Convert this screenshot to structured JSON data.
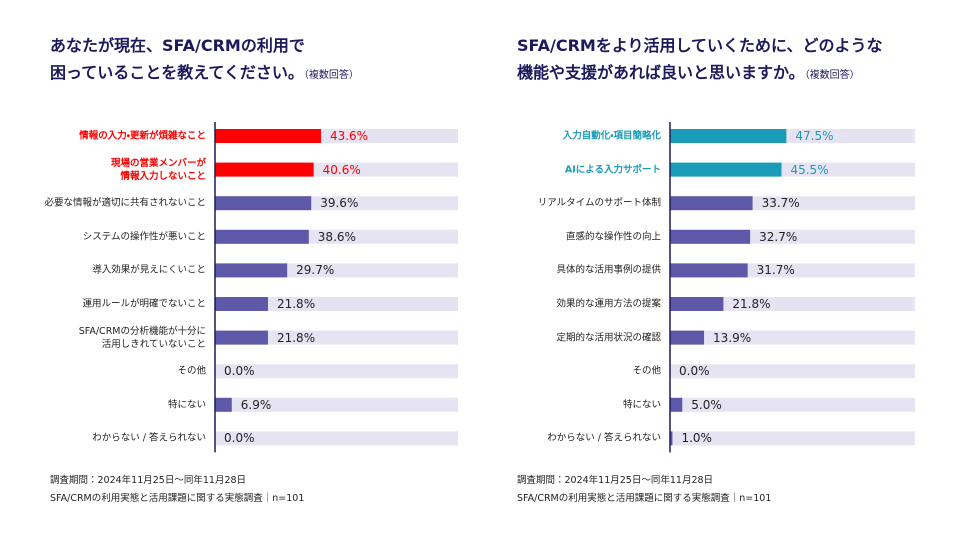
{
  "chart_data": [
    {
      "type": "bar",
      "title": [
        "あなたが現在、SFA/CRMの利用で",
        "困っていることを教えてください。"
      ],
      "title_note": "（複数回答）",
      "categories": [
        "情報の入力・更新が煩雑なこと",
        "現場の営業メンバーが\n情報入力しないこと",
        "必要な情報が適切に共有されないこと",
        "システムの操作性が悪いこと",
        "導入効果が見えにくいこと",
        "運用ルールが明確でないこと",
        "SFA/CRMの分析機能が十分に\n活用しきれていないこと",
        "その他",
        "特にない",
        "わからない / 答えられない"
      ],
      "values": [
        43.6,
        40.6,
        39.6,
        38.6,
        29.7,
        21.8,
        21.8,
        0.0,
        6.9,
        0.0
      ],
      "value_labels": [
        "43.6%",
        "40.6%",
        "39.6%",
        "38.6%",
        "29.7%",
        "21.8%",
        "21.8%",
        "0.0%",
        "6.9%",
        "0.0%"
      ],
      "color": "#5d58a8",
      "highlight_color": "#ff0000",
      "highlighted": [
        0,
        1
      ],
      "track_color": "#e6e4f2",
      "xlim": [
        0,
        100
      ],
      "footnotes": [
        "調査期間：2024年11月25日～同年11月28日",
        "SFA/CRMの利用実態と活用課題に関する実態調査｜n=101"
      ]
    },
    {
      "type": "bar",
      "title": [
        "SFA/CRMをより活用していくために、どのような",
        "機能や支援があれば良いと思いますか。"
      ],
      "title_note": "（複数回答）",
      "categories": [
        "入力自動化・項目簡略化",
        "AIによる入力サポート",
        "リアルタイムのサポート体制",
        "直感的な操作性の向上",
        "具体的な活用事例の提供",
        "効果的な運用方法の提案",
        "定期的な活用状況の確認",
        "その他",
        "特にない",
        "わからない / 答えられない"
      ],
      "values": [
        47.5,
        45.5,
        33.7,
        32.7,
        31.7,
        21.8,
        13.9,
        0.0,
        5.0,
        1.0
      ],
      "value_labels": [
        "47.5%",
        "45.5%",
        "33.7%",
        "32.7%",
        "31.7%",
        "21.8%",
        "13.9%",
        "0.0%",
        "5.0%",
        "1.0%"
      ],
      "color": "#5d58a8",
      "highlight_color": "#1a9bb8",
      "highlighted": [
        0,
        1
      ],
      "track_color": "#e6e4f2",
      "xlim": [
        0,
        100
      ],
      "footnotes": [
        "調査期間：2024年11月25日～同年11月28日",
        "SFA/CRMの利用実態と活用課題に関する実態調査｜n=101"
      ]
    }
  ]
}
